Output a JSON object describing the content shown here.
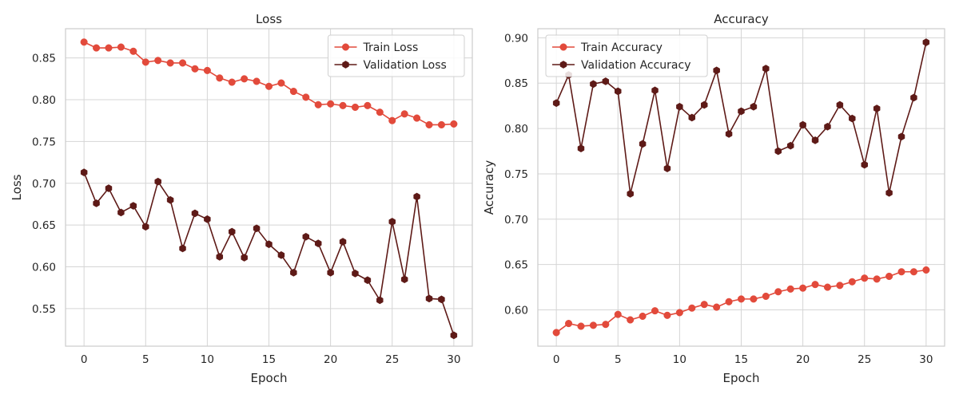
{
  "colors": {
    "train": "#e24a3b",
    "validation": "#5e1a17"
  },
  "chart_data": [
    {
      "type": "line",
      "title": "Loss",
      "xlabel": "Epoch",
      "ylabel": "Loss",
      "xlim": [
        -1.5,
        31.5
      ],
      "ylim": [
        0.505,
        0.885
      ],
      "xticks": [
        0,
        5,
        10,
        15,
        20,
        25,
        30
      ],
      "yticks": [
        0.55,
        0.6,
        0.65,
        0.7,
        0.75,
        0.8,
        0.85
      ],
      "ytick_decimals": 2,
      "grid": true,
      "legend_position": "top-right",
      "x": [
        0,
        1,
        2,
        3,
        4,
        5,
        6,
        7,
        8,
        9,
        10,
        11,
        12,
        13,
        14,
        15,
        16,
        17,
        18,
        19,
        20,
        21,
        22,
        23,
        24,
        25,
        26,
        27,
        28,
        29,
        30
      ],
      "series": [
        {
          "name": "Train Loss",
          "color_key": "train",
          "marker": "circle",
          "values": [
            0.869,
            0.862,
            0.862,
            0.863,
            0.858,
            0.845,
            0.847,
            0.844,
            0.844,
            0.837,
            0.835,
            0.826,
            0.821,
            0.825,
            0.822,
            0.816,
            0.82,
            0.81,
            0.803,
            0.794,
            0.795,
            0.793,
            0.791,
            0.793,
            0.785,
            0.775,
            0.783,
            0.778,
            0.77,
            0.77,
            0.771
          ]
        },
        {
          "name": "Validation Loss",
          "color_key": "validation",
          "marker": "hexagon",
          "values": [
            0.713,
            0.676,
            0.694,
            0.665,
            0.673,
            0.648,
            0.702,
            0.68,
            0.622,
            0.664,
            0.657,
            0.612,
            0.642,
            0.611,
            0.646,
            0.627,
            0.614,
            0.593,
            0.636,
            0.628,
            0.593,
            0.63,
            0.592,
            0.584,
            0.56,
            0.654,
            0.585,
            0.684,
            0.562,
            0.561,
            0.518
          ]
        }
      ]
    },
    {
      "type": "line",
      "title": "Accuracy",
      "xlabel": "Epoch",
      "ylabel": "Accuracy",
      "xlim": [
        -1.5,
        31.5
      ],
      "ylim": [
        0.56,
        0.91
      ],
      "xticks": [
        0,
        5,
        10,
        15,
        20,
        25,
        30
      ],
      "yticks": [
        0.6,
        0.65,
        0.7,
        0.75,
        0.8,
        0.85,
        0.9
      ],
      "ytick_decimals": 2,
      "grid": true,
      "legend_position": "top-left",
      "x": [
        0,
        1,
        2,
        3,
        4,
        5,
        6,
        7,
        8,
        9,
        10,
        11,
        12,
        13,
        14,
        15,
        16,
        17,
        18,
        19,
        20,
        21,
        22,
        23,
        24,
        25,
        26,
        27,
        28,
        29,
        30
      ],
      "series": [
        {
          "name": "Train Accuracy",
          "color_key": "train",
          "marker": "circle",
          "values": [
            0.575,
            0.585,
            0.582,
            0.583,
            0.584,
            0.595,
            0.589,
            0.593,
            0.599,
            0.594,
            0.597,
            0.602,
            0.606,
            0.603,
            0.609,
            0.612,
            0.612,
            0.615,
            0.62,
            0.623,
            0.624,
            0.628,
            0.625,
            0.627,
            0.631,
            0.635,
            0.634,
            0.637,
            0.642,
            0.642,
            0.644
          ]
        },
        {
          "name": "Validation Accuracy",
          "color_key": "validation",
          "marker": "hexagon",
          "values": [
            0.828,
            0.859,
            0.778,
            0.849,
            0.852,
            0.841,
            0.728,
            0.783,
            0.842,
            0.756,
            0.824,
            0.812,
            0.826,
            0.864,
            0.794,
            0.819,
            0.824,
            0.866,
            0.775,
            0.781,
            0.804,
            0.787,
            0.802,
            0.826,
            0.811,
            0.76,
            0.822,
            0.729,
            0.791,
            0.834,
            0.895
          ]
        }
      ]
    }
  ]
}
